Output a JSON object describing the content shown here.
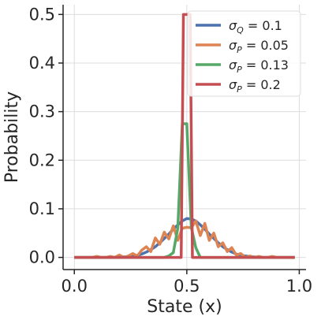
{
  "chart_data": {
    "type": "line",
    "xlabel": "State (x)",
    "ylabel": "Probability",
    "xlim": [
      -0.05,
      1.03
    ],
    "ylim": [
      -0.025,
      0.52
    ],
    "xticks": [
      0.0,
      0.5,
      1.0
    ],
    "xtick_labels": [
      "0.0",
      "0.5",
      "1.0"
    ],
    "yticks": [
      0.0,
      0.1,
      0.2,
      0.3,
      0.4,
      0.5
    ],
    "ytick_labels": [
      "0.0",
      "0.1",
      "0.2",
      "0.3",
      "0.4",
      "0.5"
    ],
    "grid": true,
    "legend_position": "top-right",
    "series": [
      {
        "name": "σ_Q = 0.1",
        "legend": {
          "sym": "σ",
          "sub": "Q",
          "rest": " = 0.1"
        },
        "color": "#4c72b0",
        "x": [
          0.0,
          0.02,
          0.04,
          0.06,
          0.08,
          0.1,
          0.12,
          0.14,
          0.16,
          0.18,
          0.2,
          0.22,
          0.24,
          0.26,
          0.28,
          0.3,
          0.32,
          0.34,
          0.36,
          0.38,
          0.4,
          0.42,
          0.44,
          0.46,
          0.48,
          0.5,
          0.52,
          0.54,
          0.56,
          0.58,
          0.6,
          0.62,
          0.64,
          0.66,
          0.68,
          0.7,
          0.72,
          0.74,
          0.76,
          0.78,
          0.8,
          0.82,
          0.84,
          0.86,
          0.88,
          0.9,
          0.92,
          0.94,
          0.96,
          0.98
        ],
        "y": [
          0.0,
          0.0,
          0.0,
          0.0,
          0.0,
          0.0,
          0.0,
          0.0,
          0.0,
          0.0,
          0.0,
          0.001,
          0.002,
          0.003,
          0.004,
          0.007,
          0.011,
          0.016,
          0.022,
          0.03,
          0.039,
          0.048,
          0.058,
          0.067,
          0.075,
          0.08,
          0.079,
          0.075,
          0.067,
          0.058,
          0.048,
          0.039,
          0.03,
          0.022,
          0.016,
          0.011,
          0.007,
          0.004,
          0.003,
          0.002,
          0.001,
          0.0,
          0.0,
          0.0,
          0.0,
          0.0,
          0.0,
          0.0,
          0.0,
          0.0
        ]
      },
      {
        "name": "σ_P = 0.05",
        "legend": {
          "sym": "σ",
          "sub": "P",
          "rest": " = 0.05"
        },
        "color": "#dd8452",
        "x": [
          0.0,
          0.02,
          0.04,
          0.06,
          0.08,
          0.1,
          0.12,
          0.14,
          0.16,
          0.18,
          0.2,
          0.22,
          0.24,
          0.26,
          0.28,
          0.3,
          0.32,
          0.34,
          0.36,
          0.38,
          0.4,
          0.42,
          0.44,
          0.46,
          0.48,
          0.5,
          0.52,
          0.54,
          0.56,
          0.58,
          0.6,
          0.62,
          0.64,
          0.66,
          0.68,
          0.7,
          0.72,
          0.74,
          0.76,
          0.78,
          0.8,
          0.82,
          0.84,
          0.86,
          0.88,
          0.9,
          0.92,
          0.94,
          0.96,
          0.98
        ],
        "y": [
          0.0,
          0.0,
          0.0,
          0.0,
          0.0,
          0.002,
          0.0,
          0.0,
          0.002,
          0.0,
          0.005,
          0.0,
          0.003,
          0.008,
          0.003,
          0.015,
          0.022,
          0.012,
          0.04,
          0.027,
          0.052,
          0.038,
          0.065,
          0.035,
          0.06,
          0.062,
          0.061,
          0.075,
          0.045,
          0.07,
          0.035,
          0.05,
          0.022,
          0.03,
          0.012,
          0.02,
          0.005,
          0.008,
          0.0,
          0.003,
          0.0,
          0.002,
          0.0,
          0.0,
          0.002,
          0.0,
          0.0,
          0.0,
          0.0,
          0.0
        ]
      },
      {
        "name": "σ_P = 0.13",
        "legend": {
          "sym": "σ",
          "sub": "P",
          "rest": " = 0.13"
        },
        "color": "#55a868",
        "x": [
          0.0,
          0.3,
          0.4,
          0.42,
          0.44,
          0.46,
          0.48,
          0.5,
          0.52,
          0.54,
          0.56,
          0.6,
          0.98
        ],
        "y": [
          0.0,
          0.0,
          0.0,
          0.003,
          0.01,
          0.06,
          0.275,
          0.275,
          0.062,
          0.02,
          0.0,
          0.0,
          0.0
        ]
      },
      {
        "name": "σ_P = 0.2",
        "legend": {
          "sym": "σ",
          "sub": "P",
          "rest": " = 0.2"
        },
        "color": "#c44e52",
        "x": [
          0.0,
          0.46,
          0.475,
          0.485,
          0.515,
          0.525,
          0.54,
          0.98
        ],
        "y": [
          0.0,
          0.0,
          0.0,
          0.5,
          0.5,
          0.0,
          0.0,
          0.0
        ]
      }
    ]
  }
}
